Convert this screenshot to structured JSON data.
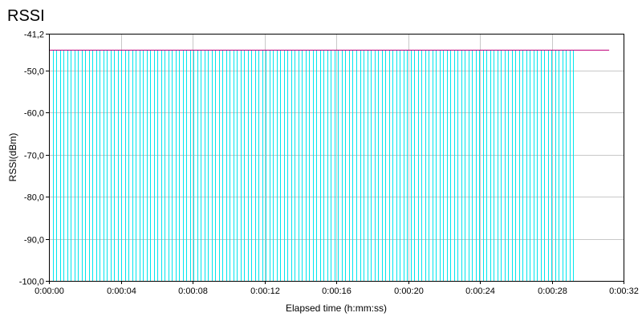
{
  "chart_data": {
    "type": "bar",
    "title": "RSSI",
    "xlabel": "Elapsed time (h:mm:ss)",
    "ylabel": "RSSI(dBm)",
    "ylim": [
      -100,
      -41.2
    ],
    "xlim_seconds": [
      0,
      32
    ],
    "y_ticks": [
      "-41,2",
      "-50,0",
      "-60,0",
      "-70,0",
      "-80,0",
      "-90,0",
      "-100,0"
    ],
    "x_ticks": [
      "0:00:00",
      "0:00:04",
      "0:00:08",
      "0:00:12",
      "0:00:16",
      "0:00:20",
      "0:00:24",
      "0:00:28",
      "0:00:32"
    ],
    "grid": true,
    "legend": "none",
    "series": [
      {
        "style": "bars",
        "color": "#00e5ee",
        "x_start": "0:00:00",
        "x_end": "0:00:29.2",
        "sample_count": 146,
        "value": -45
      },
      {
        "style": "line",
        "color": "#c0007a",
        "x": [
          "0:00:00",
          "0:00:31.2"
        ],
        "values": [
          -45,
          -45
        ]
      }
    ]
  }
}
